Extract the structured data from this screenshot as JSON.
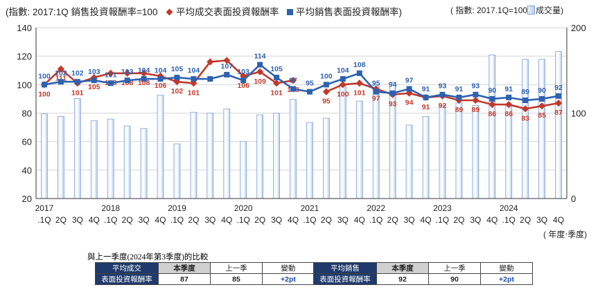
{
  "legend": {
    "index_label": "(指數: 2017:1Q 銷售投資報酬率=100",
    "trade_label": "平均成交表面投資報酬率",
    "sales_label": "平均銷售表面投資報酬率)",
    "index_note": "( 指數: 2017.1Q=100",
    "volume_label": "成交量)"
  },
  "unit_note": "( 年度‧季度)",
  "compare_title": "與上一季度(2024年第3季度)的比較",
  "compare_tables": [
    {
      "label_line1": "平均成交",
      "label_line2": "表面投資報酬率",
      "headers": [
        "本季度",
        "上一季",
        "變動"
      ],
      "values": [
        "87",
        "85",
        "+2pt"
      ]
    },
    {
      "label_line1": "平均銷售",
      "label_line2": "表面投資報酬率",
      "headers": [
        "本季度",
        "上一季",
        "變動"
      ],
      "values": [
        "92",
        "90",
        "+2pt"
      ]
    }
  ],
  "colors": {
    "trade_line": "#c0392b",
    "sales_line": "#2e61b0",
    "bar_fill": "#b8cdeb",
    "bar_stroke": "#7fa3d6",
    "header_bg": "#1f3a6b"
  },
  "chart_data": {
    "type": "line",
    "quarters": [
      ".1Q",
      "2Q",
      "3Q",
      "4Q",
      ".1Q",
      "2Q",
      "3Q",
      "4Q",
      ".1Q",
      "2Q",
      "3Q",
      "4Q",
      ".1Q",
      "2Q",
      "3Q",
      "4Q",
      ".1Q",
      "2Q",
      "3Q",
      "4Q",
      ".1Q",
      "2Q",
      "3Q",
      "4Q",
      ".1Q",
      "2Q",
      "3Q",
      "4Q",
      ".1Q",
      "2Q",
      "3Q",
      "4Q"
    ],
    "years": [
      {
        "label": "2017",
        "start": 0
      },
      {
        "label": "2018",
        "start": 4
      },
      {
        "label": "2019",
        "start": 8
      },
      {
        "label": "2020",
        "start": 12
      },
      {
        "label": "2021",
        "start": 16
      },
      {
        "label": "2022",
        "start": 20
      },
      {
        "label": "2023",
        "start": 24
      },
      {
        "label": "2024",
        "start": 28
      }
    ],
    "series": [
      {
        "name": "平均成交表面投資報酬率",
        "axis": "left",
        "values": [
          100,
          111,
          101,
          105,
          108,
          108,
          108,
          106,
          102,
          101,
          116,
          117,
          106,
          109,
          101,
          103,
          null,
          95,
          100,
          101,
          97,
          93,
          94,
          91,
          92,
          89,
          89,
          86,
          86,
          83,
          85,
          87
        ],
        "labels": [
          "100",
          "111",
          "101",
          "105",
          "108",
          "108",
          "108",
          "106",
          "102",
          "101",
          "",
          "",
          "106",
          "109",
          "101",
          "103",
          "",
          "95",
          "100",
          "101",
          "97",
          "93",
          "94",
          "91",
          "92",
          "89",
          "89",
          "86",
          "86",
          "83",
          "85",
          "87"
        ]
      },
      {
        "name": "平均銷售表面投資報酬率",
        "axis": "left",
        "values": [
          100,
          102,
          102,
          103,
          101,
          103,
          104,
          104,
          105,
          104,
          104,
          107,
          103,
          114,
          105,
          97,
          95,
          100,
          104,
          108,
          95,
          94,
          97,
          91,
          93,
          91,
          93,
          90,
          91,
          89,
          90,
          92
        ],
        "labels": [
          "100",
          "102",
          "102",
          "103",
          "101",
          "103",
          "104",
          "104",
          "105",
          "104",
          "",
          "107",
          "103",
          "114",
          "105",
          "97",
          "95",
          "100",
          "104",
          "108",
          "95",
          "94",
          "97",
          "91",
          "93",
          "91",
          "93",
          "90",
          "91",
          "89",
          "90",
          "92"
        ]
      },
      {
        "name": "成交量",
        "type": "bar",
        "axis": "right",
        "values": [
          99,
          96,
          117,
          91,
          93,
          85,
          82,
          121,
          64,
          101,
          100,
          105,
          67,
          98,
          100,
          116,
          89,
          94,
          132,
          114,
          133,
          136,
          86,
          96,
          109,
          112,
          109,
          168,
          111,
          163,
          163,
          172
        ]
      }
    ],
    "left_axis": {
      "min": 20,
      "max": 140,
      "ticks": [
        20,
        40,
        60,
        80,
        100,
        120,
        140
      ]
    },
    "right_axis": {
      "min": 0,
      "max": 200,
      "ticks": [
        0,
        100,
        200
      ]
    }
  }
}
